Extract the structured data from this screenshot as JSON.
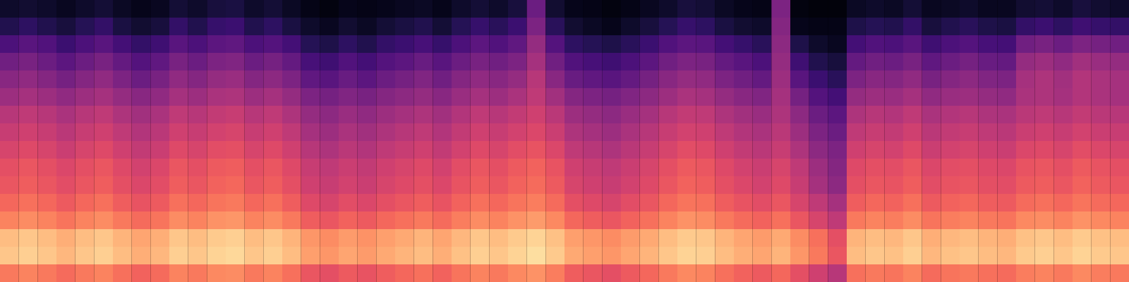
{
  "chart_data": {
    "type": "heatmap",
    "tick_labels": false,
    "zlim": [
      0,
      100
    ],
    "cells": [
      [
        8,
        9,
        8,
        6,
        8,
        10,
        7,
        5,
        6,
        10,
        8,
        11,
        12,
        8,
        10,
        7,
        4,
        3,
        5,
        4,
        5,
        6,
        7,
        5,
        8,
        10,
        8,
        11,
        32,
        9,
        5,
        4,
        3,
        4,
        6,
        8,
        11,
        10,
        7,
        5,
        4,
        36,
        3,
        2,
        2,
        7,
        8,
        7,
        10,
        6,
        7,
        8,
        6,
        6,
        9,
        10,
        8,
        11,
        9,
        8
      ],
      [
        14,
        17,
        14,
        11,
        15,
        18,
        12,
        9,
        11,
        18,
        14,
        19,
        20,
        14,
        17,
        12,
        8,
        6,
        9,
        7,
        10,
        12,
        14,
        10,
        15,
        19,
        16,
        20,
        36,
        16,
        9,
        7,
        5,
        8,
        11,
        15,
        19,
        17,
        12,
        9,
        8,
        38,
        5,
        4,
        4,
        13,
        15,
        14,
        18,
        11,
        14,
        16,
        13,
        12,
        18,
        20,
        17,
        21,
        19,
        18
      ],
      [
        24,
        27,
        25,
        20,
        24,
        27,
        22,
        18,
        21,
        27,
        24,
        28,
        29,
        24,
        26,
        22,
        15,
        13,
        17,
        14,
        18,
        20,
        23,
        19,
        24,
        28,
        25,
        29,
        42,
        26,
        17,
        15,
        13,
        16,
        20,
        25,
        28,
        27,
        22,
        19,
        16,
        40,
        13,
        8,
        6,
        22,
        25,
        24,
        27,
        21,
        24,
        26,
        23,
        22,
        33,
        35,
        32,
        36,
        34,
        33
      ],
      [
        33,
        35,
        32,
        28,
        32,
        35,
        30,
        26,
        29,
        35,
        32,
        36,
        37,
        32,
        34,
        30,
        23,
        21,
        25,
        22,
        26,
        28,
        31,
        27,
        32,
        35,
        33,
        36,
        46,
        33,
        25,
        23,
        21,
        24,
        28,
        33,
        36,
        35,
        30,
        27,
        24,
        42,
        21,
        14,
        11,
        30,
        33,
        32,
        35,
        29,
        32,
        34,
        31,
        30,
        42,
        44,
        41,
        45,
        43,
        42
      ],
      [
        39,
        41,
        38,
        34,
        38,
        41,
        36,
        32,
        35,
        41,
        38,
        42,
        43,
        38,
        40,
        36,
        29,
        27,
        31,
        28,
        32,
        34,
        37,
        33,
        38,
        41,
        39,
        42,
        50,
        39,
        31,
        29,
        27,
        30,
        34,
        39,
        42,
        41,
        36,
        33,
        30,
        44,
        27,
        20,
        16,
        36,
        39,
        38,
        41,
        35,
        38,
        40,
        37,
        36,
        46,
        48,
        45,
        49,
        47,
        46
      ],
      [
        44,
        46,
        44,
        41,
        44,
        46,
        42,
        39,
        41,
        46,
        44,
        47,
        48,
        44,
        46,
        42,
        36,
        34,
        37,
        35,
        38,
        40,
        42,
        39,
        43,
        46,
        44,
        47,
        52,
        45,
        38,
        36,
        34,
        37,
        40,
        44,
        47,
        46,
        42,
        39,
        37,
        46,
        34,
        26,
        22,
        42,
        44,
        43,
        46,
        41,
        43,
        44,
        42,
        41,
        47,
        48,
        46,
        49,
        47,
        46
      ],
      [
        50,
        52,
        50,
        47,
        50,
        52,
        48,
        45,
        47,
        52,
        50,
        53,
        54,
        50,
        52,
        48,
        42,
        40,
        43,
        41,
        44,
        46,
        48,
        45,
        49,
        52,
        50,
        53,
        56,
        51,
        44,
        42,
        40,
        43,
        46,
        50,
        53,
        52,
        48,
        45,
        43,
        48,
        40,
        32,
        28,
        48,
        50,
        49,
        52,
        47,
        49,
        50,
        48,
        47,
        51,
        52,
        50,
        53,
        51,
        50
      ],
      [
        54,
        56,
        54,
        51,
        54,
        56,
        52,
        49,
        51,
        56,
        54,
        57,
        58,
        54,
        56,
        52,
        46,
        44,
        47,
        45,
        48,
        50,
        52,
        49,
        53,
        56,
        54,
        57,
        59,
        55,
        48,
        46,
        44,
        47,
        50,
        54,
        57,
        56,
        52,
        49,
        47,
        51,
        44,
        36,
        32,
        52,
        54,
        53,
        56,
        51,
        53,
        54,
        52,
        51,
        55,
        56,
        54,
        57,
        55,
        54
      ],
      [
        58,
        60,
        58,
        55,
        58,
        60,
        56,
        53,
        55,
        60,
        58,
        61,
        62,
        58,
        60,
        56,
        50,
        48,
        51,
        49,
        52,
        54,
        56,
        53,
        57,
        60,
        58,
        61,
        63,
        59,
        52,
        50,
        48,
        51,
        54,
        58,
        61,
        60,
        56,
        53,
        51,
        54,
        48,
        40,
        36,
        56,
        58,
        57,
        60,
        55,
        57,
        58,
        56,
        55,
        59,
        60,
        58,
        61,
        59,
        58
      ],
      [
        62,
        64,
        62,
        59,
        62,
        64,
        60,
        57,
        59,
        64,
        62,
        65,
        66,
        62,
        64,
        60,
        54,
        52,
        55,
        53,
        56,
        58,
        60,
        57,
        61,
        64,
        62,
        65,
        67,
        63,
        56,
        54,
        52,
        55,
        58,
        62,
        65,
        64,
        60,
        57,
        55,
        58,
        52,
        44,
        38,
        60,
        62,
        61,
        64,
        59,
        61,
        62,
        60,
        59,
        63,
        64,
        62,
        65,
        63,
        62
      ],
      [
        64,
        66,
        64,
        61,
        64,
        66,
        62,
        59,
        61,
        66,
        64,
        67,
        68,
        64,
        66,
        62,
        56,
        54,
        57,
        55,
        58,
        60,
        62,
        59,
        63,
        66,
        64,
        67,
        69,
        65,
        58,
        56,
        54,
        57,
        60,
        64,
        67,
        66,
        62,
        59,
        57,
        60,
        54,
        46,
        40,
        62,
        64,
        63,
        66,
        61,
        63,
        64,
        62,
        61,
        65,
        66,
        64,
        67,
        65,
        64
      ],
      [
        68,
        70,
        68,
        65,
        68,
        70,
        66,
        63,
        65,
        70,
        68,
        71,
        72,
        68,
        70,
        66,
        60,
        58,
        61,
        59,
        62,
        64,
        66,
        63,
        67,
        70,
        68,
        71,
        73,
        69,
        62,
        60,
        58,
        61,
        64,
        68,
        71,
        70,
        66,
        63,
        61,
        64,
        58,
        52,
        46,
        66,
        68,
        67,
        70,
        65,
        67,
        68,
        66,
        65,
        69,
        70,
        68,
        71,
        69,
        68
      ],
      [
        74,
        76,
        74,
        71,
        74,
        76,
        72,
        69,
        71,
        76,
        74,
        77,
        78,
        74,
        76,
        72,
        66,
        64,
        67,
        65,
        68,
        70,
        72,
        69,
        73,
        76,
        74,
        77,
        79,
        75,
        68,
        66,
        64,
        67,
        70,
        74,
        77,
        76,
        72,
        69,
        67,
        70,
        64,
        58,
        52,
        72,
        74,
        73,
        76,
        71,
        73,
        74,
        72,
        71,
        75,
        76,
        74,
        77,
        75,
        74
      ],
      [
        86,
        88,
        86,
        83,
        86,
        88,
        84,
        81,
        83,
        88,
        86,
        89,
        90,
        86,
        88,
        84,
        78,
        76,
        79,
        77,
        80,
        82,
        84,
        81,
        85,
        88,
        86,
        89,
        91,
        87,
        80,
        78,
        76,
        79,
        82,
        86,
        89,
        88,
        84,
        81,
        79,
        82,
        76,
        70,
        62,
        84,
        86,
        85,
        88,
        83,
        85,
        86,
        84,
        83,
        87,
        88,
        86,
        89,
        87,
        86
      ],
      [
        88,
        90,
        88,
        85,
        88,
        90,
        86,
        83,
        85,
        90,
        88,
        91,
        92,
        88,
        90,
        86,
        80,
        78,
        81,
        79,
        82,
        84,
        86,
        83,
        87,
        90,
        88,
        91,
        93,
        89,
        82,
        80,
        78,
        81,
        84,
        88,
        91,
        90,
        86,
        83,
        81,
        84,
        78,
        72,
        64,
        86,
        88,
        87,
        90,
        85,
        87,
        88,
        86,
        85,
        89,
        90,
        88,
        91,
        89,
        88
      ],
      [
        72,
        74,
        72,
        69,
        72,
        74,
        70,
        67,
        69,
        74,
        72,
        75,
        76,
        72,
        74,
        70,
        64,
        62,
        65,
        63,
        66,
        68,
        70,
        67,
        71,
        74,
        72,
        75,
        77,
        73,
        66,
        64,
        62,
        65,
        68,
        72,
        75,
        74,
        70,
        67,
        65,
        68,
        62,
        56,
        50,
        70,
        72,
        71,
        74,
        69,
        71,
        72,
        70,
        69,
        73,
        74,
        72,
        75,
        73,
        72
      ]
    ]
  }
}
